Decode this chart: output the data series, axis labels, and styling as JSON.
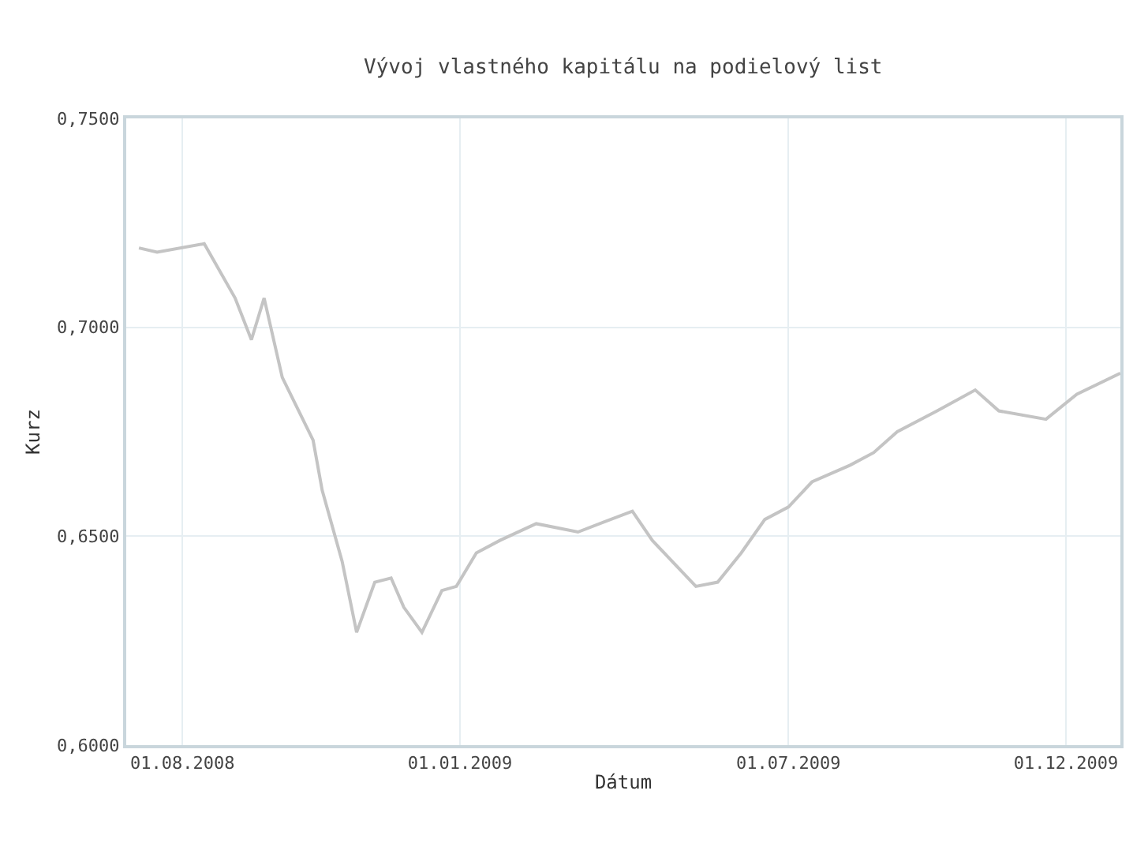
{
  "chart_data": {
    "type": "line",
    "title": "Vývoj vlastného kapitálu na podielový list",
    "xlabel": "Dátum",
    "ylabel": "Kurz",
    "series": [
      {
        "color": "#c4c4c4",
        "x": [
          "2008-07-08",
          "2008-07-18",
          "2008-08-13",
          "2008-08-30",
          "2008-09-08",
          "2008-09-15",
          "2008-09-25",
          "2008-10-12",
          "2008-10-17",
          "2008-10-28",
          "2008-11-05",
          "2008-11-15",
          "2008-11-24",
          "2008-12-01",
          "2008-12-11",
          "2008-12-22",
          "2008-12-30",
          "2009-01-10",
          "2009-01-23",
          "2009-02-12",
          "2009-03-07",
          "2009-04-06",
          "2009-04-17",
          "2009-05-11",
          "2009-05-23",
          "2009-06-05",
          "2009-06-18",
          "2009-07-01",
          "2009-07-14",
          "2009-08-04",
          "2009-08-17",
          "2009-08-30",
          "2009-09-21",
          "2009-10-12",
          "2009-10-25",
          "2009-11-20",
          "2009-12-07",
          "2009-12-31"
        ],
        "values": [
          0.719,
          0.718,
          0.72,
          0.707,
          0.697,
          0.707,
          0.688,
          0.673,
          0.661,
          0.644,
          0.627,
          0.639,
          0.64,
          0.633,
          0.627,
          0.637,
          0.638,
          0.646,
          0.649,
          0.653,
          0.651,
          0.656,
          0.649,
          0.638,
          0.639,
          0.646,
          0.654,
          0.657,
          0.663,
          0.667,
          0.67,
          0.675,
          0.68,
          0.685,
          0.68,
          0.678,
          0.684,
          0.689
        ]
      }
    ],
    "xlim": [
      "2008-07-01",
      "2009-12-31"
    ],
    "xticks": [
      {
        "value": "2008-08-01",
        "label": "01.08.2008"
      },
      {
        "value": "2009-01-01",
        "label": "01.01.2009"
      },
      {
        "value": "2009-07-01",
        "label": "01.07.2009"
      },
      {
        "value": "2009-12-01",
        "label": "01.12.2009"
      }
    ],
    "ylim": [
      0.6,
      0.75
    ],
    "yticks": [
      {
        "value": 0.6,
        "label": "0,6000"
      },
      {
        "value": 0.65,
        "label": "0,6500"
      },
      {
        "value": 0.7,
        "label": "0,7000"
      },
      {
        "value": 0.75,
        "label": "0,7500"
      }
    ],
    "grid": true,
    "marker": "none",
    "line_style": "solid"
  }
}
